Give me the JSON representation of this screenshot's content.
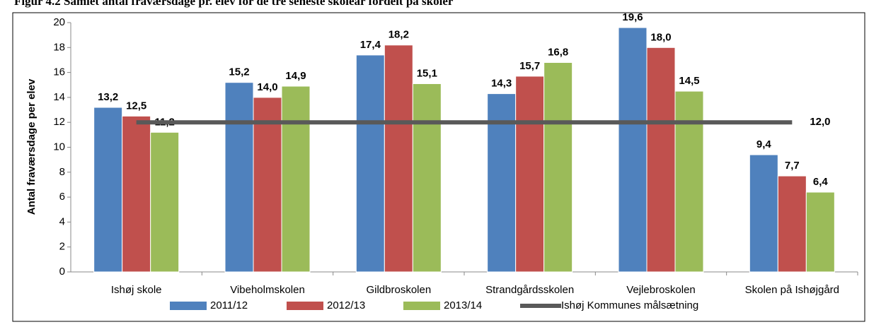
{
  "chart_data": {
    "type": "bar",
    "title": "Figur 4.2 Samlet antal fraværsdage pr. elev for de tre seneste skoleår fordelt på skoler",
    "y_label": "Antal fraværsdage per elev",
    "categories": [
      "Ishøj skole",
      "Vibeholmskolen",
      "Gildbroskolen",
      "Strandgårdsskolen",
      "Vejlebroskolen",
      "Skolen på Ishøjgård"
    ],
    "series": [
      {
        "name": "2011/12",
        "color": "#4f81bd",
        "values": [
          13.2,
          15.2,
          17.4,
          14.3,
          19.6,
          9.4
        ],
        "value_labels": [
          "13,2",
          "15,2",
          "17,4",
          "14,3",
          "19,6",
          "9,4"
        ]
      },
      {
        "name": "2012/13",
        "color": "#c0504d",
        "values": [
          12.5,
          14.0,
          18.2,
          15.7,
          18.0,
          7.7
        ],
        "value_labels": [
          "12,5",
          "14,0",
          "18,2",
          "15,7",
          "18,0",
          "7,7"
        ]
      },
      {
        "name": "2013/14",
        "color": "#9bbb59",
        "values": [
          11.2,
          14.9,
          15.1,
          16.8,
          14.5,
          6.4
        ],
        "value_labels": [
          "11,2",
          "14,9",
          "15,1",
          "16,8",
          "14,5",
          "6,4"
        ]
      },
      {
        "name": "Ishøj Kommunes målsætning",
        "type": "line",
        "color": "#595959",
        "values": [
          12,
          12,
          12,
          12,
          12,
          12
        ],
        "value_labels": [
          null,
          null,
          null,
          null,
          null,
          "12,0"
        ]
      }
    ],
    "ylim": [
      0,
      20
    ],
    "yticks": [
      0,
      2,
      4,
      6,
      8,
      10,
      12,
      14,
      16,
      18,
      20
    ],
    "legend": "bottom"
  }
}
